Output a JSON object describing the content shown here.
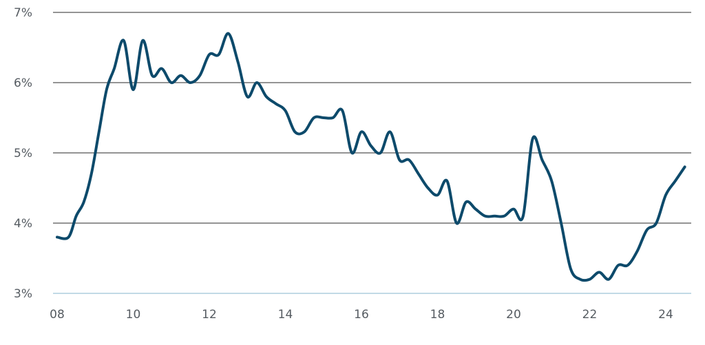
{
  "chart_data": {
    "type": "line",
    "title": "",
    "xlabel": "",
    "ylabel": "",
    "xlim": [
      2008,
      2024.6
    ],
    "ylim": [
      3,
      7
    ],
    "grid": true,
    "x_ticks": [
      {
        "value": 2008,
        "label": "08"
      },
      {
        "value": 2010,
        "label": "10"
      },
      {
        "value": 2012,
        "label": "12"
      },
      {
        "value": 2014,
        "label": "14"
      },
      {
        "value": 2016,
        "label": "16"
      },
      {
        "value": 2018,
        "label": "18"
      },
      {
        "value": 2020,
        "label": "20"
      },
      {
        "value": 2022,
        "label": "22"
      },
      {
        "value": 2024,
        "label": "24"
      }
    ],
    "y_ticks": [
      {
        "value": 3,
        "label": "3%"
      },
      {
        "value": 4,
        "label": "4%"
      },
      {
        "value": 5,
        "label": "5%"
      },
      {
        "value": 6,
        "label": "6%"
      },
      {
        "value": 7,
        "label": "7%"
      }
    ],
    "colors": {
      "line": "#0d4a6b",
      "grid": "#555555",
      "baseline": "#9cc3d8"
    },
    "series": [
      {
        "points": [
          [
            2008.0,
            3.8
          ],
          [
            2008.3,
            3.8
          ],
          [
            2008.5,
            4.1
          ],
          [
            2008.7,
            4.3
          ],
          [
            2008.9,
            4.7
          ],
          [
            2009.1,
            5.3
          ],
          [
            2009.3,
            5.9
          ],
          [
            2009.5,
            6.2
          ],
          [
            2009.75,
            6.6
          ],
          [
            2010.0,
            5.9
          ],
          [
            2010.25,
            6.6
          ],
          [
            2010.5,
            6.1
          ],
          [
            2010.75,
            6.2
          ],
          [
            2011.0,
            6.0
          ],
          [
            2011.25,
            6.1
          ],
          [
            2011.5,
            6.0
          ],
          [
            2011.75,
            6.1
          ],
          [
            2012.0,
            6.4
          ],
          [
            2012.25,
            6.4
          ],
          [
            2012.5,
            6.7
          ],
          [
            2012.75,
            6.3
          ],
          [
            2013.0,
            5.8
          ],
          [
            2013.25,
            6.0
          ],
          [
            2013.5,
            5.8
          ],
          [
            2013.75,
            5.7
          ],
          [
            2014.0,
            5.6
          ],
          [
            2014.25,
            5.3
          ],
          [
            2014.5,
            5.3
          ],
          [
            2014.75,
            5.5
          ],
          [
            2015.0,
            5.5
          ],
          [
            2015.25,
            5.5
          ],
          [
            2015.5,
            5.6
          ],
          [
            2015.75,
            5.0
          ],
          [
            2016.0,
            5.3
          ],
          [
            2016.25,
            5.1
          ],
          [
            2016.5,
            5.0
          ],
          [
            2016.75,
            5.3
          ],
          [
            2017.0,
            4.9
          ],
          [
            2017.25,
            4.9
          ],
          [
            2017.5,
            4.7
          ],
          [
            2017.75,
            4.5
          ],
          [
            2018.0,
            4.4
          ],
          [
            2018.25,
            4.6
          ],
          [
            2018.5,
            4.0
          ],
          [
            2018.75,
            4.3
          ],
          [
            2019.0,
            4.2
          ],
          [
            2019.25,
            4.1
          ],
          [
            2019.5,
            4.1
          ],
          [
            2019.75,
            4.1
          ],
          [
            2020.0,
            4.2
          ],
          [
            2020.25,
            4.1
          ],
          [
            2020.5,
            5.2
          ],
          [
            2020.75,
            4.9
          ],
          [
            2021.0,
            4.6
          ],
          [
            2021.25,
            4.0
          ],
          [
            2021.5,
            3.35
          ],
          [
            2021.75,
            3.2
          ],
          [
            2022.0,
            3.2
          ],
          [
            2022.25,
            3.3
          ],
          [
            2022.5,
            3.2
          ],
          [
            2022.75,
            3.4
          ],
          [
            2023.0,
            3.4
          ],
          [
            2023.25,
            3.6
          ],
          [
            2023.5,
            3.9
          ],
          [
            2023.75,
            4.0
          ],
          [
            2024.0,
            4.4
          ],
          [
            2024.25,
            4.6
          ],
          [
            2024.5,
            4.8
          ]
        ]
      }
    ]
  }
}
